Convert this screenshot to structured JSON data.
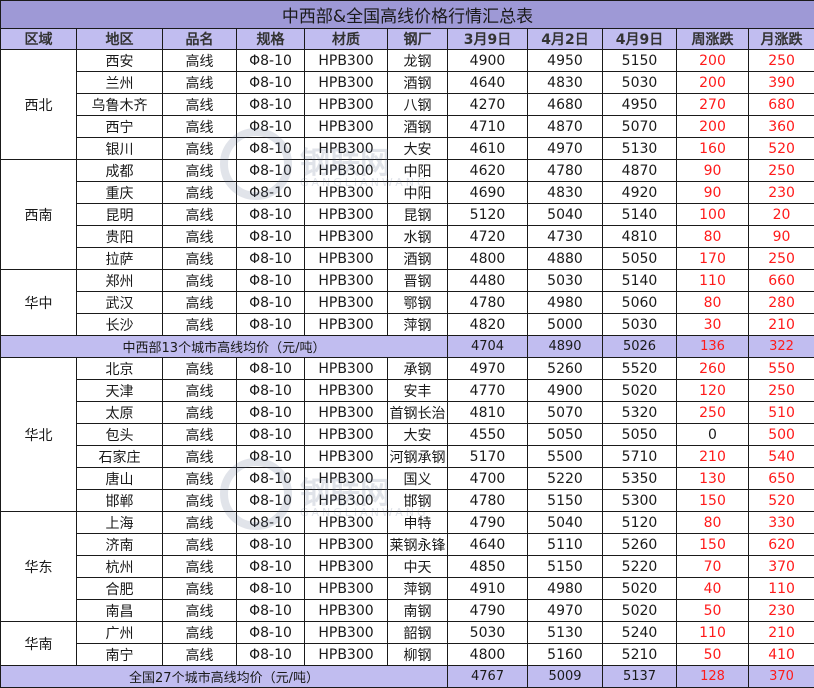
{
  "title": "中西部&全国高线价格行情汇总表",
  "headers": [
    "区域",
    "地区",
    "品名",
    "规格",
    "材质",
    "钢厂",
    "3月9日",
    "4月2日",
    "4月9日",
    "周涨跌",
    "月涨跌"
  ],
  "regions": [
    {
      "name": "西北",
      "rows": [
        {
          "city": "西安",
          "product": "高线",
          "spec": "Φ8-10",
          "material": "HPB300",
          "mill": "龙钢",
          "mar9": "4900",
          "apr2": "4950",
          "apr9": "5150",
          "week": "200",
          "month": "250"
        },
        {
          "city": "兰州",
          "product": "高线",
          "spec": "Φ8-10",
          "material": "HPB300",
          "mill": "酒钢",
          "mar9": "4640",
          "apr2": "4830",
          "apr9": "5030",
          "week": "200",
          "month": "390"
        },
        {
          "city": "乌鲁木齐",
          "product": "高线",
          "spec": "Φ8-10",
          "material": "HPB300",
          "mill": "八钢",
          "mar9": "4270",
          "apr2": "4680",
          "apr9": "4950",
          "week": "270",
          "month": "680"
        },
        {
          "city": "西宁",
          "product": "高线",
          "spec": "Φ8-10",
          "material": "HPB300",
          "mill": "酒钢",
          "mar9": "4710",
          "apr2": "4870",
          "apr9": "5070",
          "week": "200",
          "month": "360"
        },
        {
          "city": "银川",
          "product": "高线",
          "spec": "Φ8-10",
          "material": "HPB300",
          "mill": "大安",
          "mar9": "4610",
          "apr2": "4970",
          "apr9": "5130",
          "week": "160",
          "month": "520"
        }
      ]
    },
    {
      "name": "西南",
      "rows": [
        {
          "city": "成都",
          "product": "高线",
          "spec": "Φ8-10",
          "material": "HPB300",
          "mill": "中阳",
          "mar9": "4620",
          "apr2": "4780",
          "apr9": "4870",
          "week": "90",
          "month": "250"
        },
        {
          "city": "重庆",
          "product": "高线",
          "spec": "Φ8-10",
          "material": "HPB300",
          "mill": "中阳",
          "mar9": "4690",
          "apr2": "4830",
          "apr9": "4920",
          "week": "90",
          "month": "230"
        },
        {
          "city": "昆明",
          "product": "高线",
          "spec": "Φ8-10",
          "material": "HPB300",
          "mill": "昆钢",
          "mar9": "5120",
          "apr2": "5040",
          "apr9": "5140",
          "week": "100",
          "month": "20"
        },
        {
          "city": "贵阳",
          "product": "高线",
          "spec": "Φ8-10",
          "material": "HPB300",
          "mill": "水钢",
          "mar9": "4720",
          "apr2": "4730",
          "apr9": "4810",
          "week": "80",
          "month": "90"
        },
        {
          "city": "拉萨",
          "product": "高线",
          "spec": "Φ8-10",
          "material": "HPB300",
          "mill": "酒钢",
          "mar9": "4800",
          "apr2": "4880",
          "apr9": "5050",
          "week": "170",
          "month": "250"
        }
      ]
    },
    {
      "name": "华中",
      "rows": [
        {
          "city": "郑州",
          "product": "高线",
          "spec": "Φ8-10",
          "material": "HPB300",
          "mill": "晋钢",
          "mar9": "4480",
          "apr2": "5030",
          "apr9": "5140",
          "week": "110",
          "month": "660"
        },
        {
          "city": "武汉",
          "product": "高线",
          "spec": "Φ8-10",
          "material": "HPB300",
          "mill": "鄂钢",
          "mar9": "4780",
          "apr2": "4980",
          "apr9": "5060",
          "week": "80",
          "month": "280"
        },
        {
          "city": "长沙",
          "product": "高线",
          "spec": "Φ8-10",
          "material": "HPB300",
          "mill": "萍钢",
          "mar9": "4820",
          "apr2": "5000",
          "apr9": "5030",
          "week": "30",
          "month": "210"
        }
      ]
    }
  ],
  "avg_central": {
    "label": "中西部13个城市高线均价（元/吨）",
    "mar9": "4704",
    "apr2": "4890",
    "apr9": "5026",
    "week": "136",
    "month": "322"
  },
  "regions2": [
    {
      "name": "华北",
      "rows": [
        {
          "city": "北京",
          "product": "高线",
          "spec": "Φ8-10",
          "material": "HPB300",
          "mill": "承钢",
          "mar9": "4970",
          "apr2": "5260",
          "apr9": "5520",
          "week": "260",
          "month": "550"
        },
        {
          "city": "天津",
          "product": "高线",
          "spec": "Φ8-10",
          "material": "HPB300",
          "mill": "安丰",
          "mar9": "4770",
          "apr2": "4900",
          "apr9": "5020",
          "week": "120",
          "month": "250"
        },
        {
          "city": "太原",
          "product": "高线",
          "spec": "Φ8-10",
          "material": "HPB300",
          "mill": "首钢长治",
          "mar9": "4810",
          "apr2": "5070",
          "apr9": "5320",
          "week": "250",
          "month": "510"
        },
        {
          "city": "包头",
          "product": "高线",
          "spec": "Φ8-10",
          "material": "HPB300",
          "mill": "大安",
          "mar9": "4550",
          "apr2": "5050",
          "apr9": "5050",
          "week": "0",
          "month": "500"
        },
        {
          "city": "石家庄",
          "product": "高线",
          "spec": "Φ8-10",
          "material": "HPB300",
          "mill": "河钢承钢",
          "mar9": "5170",
          "apr2": "5500",
          "apr9": "5710",
          "week": "210",
          "month": "540"
        },
        {
          "city": "唐山",
          "product": "高线",
          "spec": "Φ8-10",
          "material": "HPB300",
          "mill": "国义",
          "mar9": "4700",
          "apr2": "5220",
          "apr9": "5350",
          "week": "130",
          "month": "650"
        },
        {
          "city": "邯郸",
          "product": "高线",
          "spec": "Φ8-10",
          "material": "HPB300",
          "mill": "邯钢",
          "mar9": "4780",
          "apr2": "5150",
          "apr9": "5300",
          "week": "150",
          "month": "520"
        }
      ]
    },
    {
      "name": "华东",
      "rows": [
        {
          "city": "上海",
          "product": "高线",
          "spec": "Φ8-10",
          "material": "HPB300",
          "mill": "申特",
          "mar9": "4790",
          "apr2": "5040",
          "apr9": "5120",
          "week": "80",
          "month": "330"
        },
        {
          "city": "济南",
          "product": "高线",
          "spec": "Φ8-10",
          "material": "HPB300",
          "mill": "莱钢永锋",
          "mar9": "4640",
          "apr2": "5110",
          "apr9": "5260",
          "week": "150",
          "month": "620"
        },
        {
          "city": "杭州",
          "product": "高线",
          "spec": "Φ8-10",
          "material": "HPB300",
          "mill": "中天",
          "mar9": "4850",
          "apr2": "5150",
          "apr9": "5220",
          "week": "70",
          "month": "370"
        },
        {
          "city": "合肥",
          "product": "高线",
          "spec": "Φ8-10",
          "material": "HPB300",
          "mill": "萍钢",
          "mar9": "4910",
          "apr2": "4980",
          "apr9": "5020",
          "week": "40",
          "month": "110"
        },
        {
          "city": "南昌",
          "product": "高线",
          "spec": "Φ8-10",
          "material": "HPB300",
          "mill": "南钢",
          "mar9": "4790",
          "apr2": "4970",
          "apr9": "5020",
          "week": "50",
          "month": "230"
        }
      ]
    },
    {
      "name": "华南",
      "rows": [
        {
          "city": "广州",
          "product": "高线",
          "spec": "Φ8-10",
          "material": "HPB300",
          "mill": "韶钢",
          "mar9": "5030",
          "apr2": "5130",
          "apr9": "5240",
          "week": "110",
          "month": "210"
        },
        {
          "city": "南宁",
          "product": "高线",
          "spec": "Φ8-10",
          "material": "HPB300",
          "mill": "柳钢",
          "mar9": "4800",
          "apr2": "5160",
          "apr9": "5210",
          "week": "50",
          "month": "410"
        }
      ]
    }
  ],
  "avg_national": {
    "label": "全国27个城市高线均价（元/吨）",
    "mar9": "4767",
    "apr2": "5009",
    "apr9": "5137",
    "week": "128",
    "month": "370"
  },
  "watermark": {
    "text": "钢联网",
    "sub": "GANGLIANWANG"
  },
  "colors": {
    "title_bg": "#9e99d6",
    "header_bg": "#c1bdf0",
    "avg_bg": "#c1bdf0",
    "rise": "#ff1a1a",
    "text": "#1a1a1a"
  }
}
